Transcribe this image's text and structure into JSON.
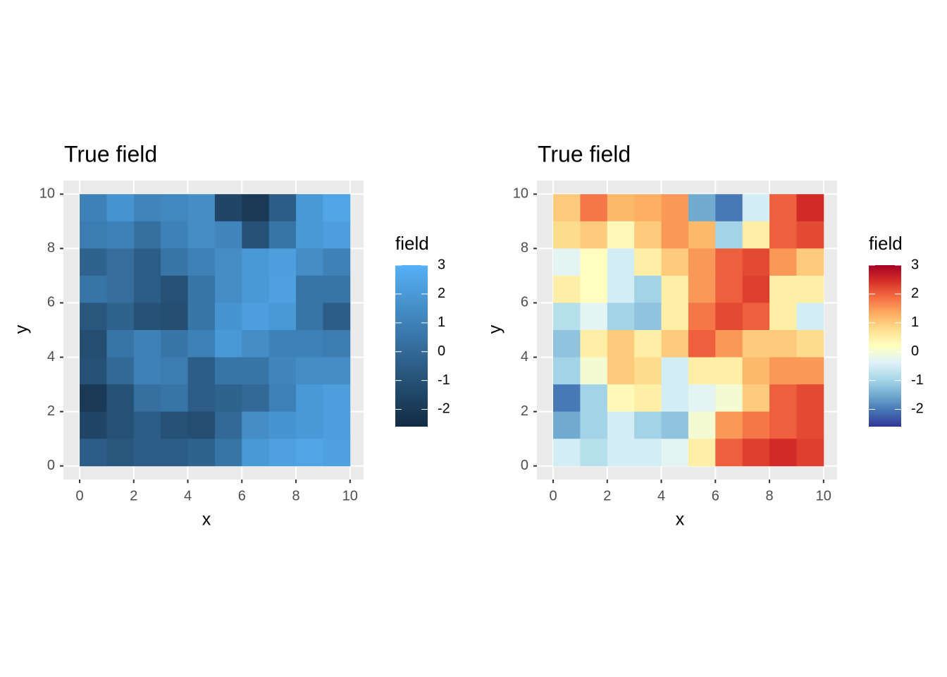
{
  "chart_data": [
    {
      "type": "heatmap",
      "title": "True field",
      "x_label": "x",
      "y_label": "y",
      "legend_title": "field",
      "x": [
        0.5,
        1.5,
        2.5,
        3.5,
        4.5,
        5.5,
        6.5,
        7.5,
        8.5,
        9.5
      ],
      "y": [
        9.5,
        8.5,
        7.5,
        6.5,
        5.5,
        4.5,
        3.5,
        2.5,
        1.5,
        0.5
      ],
      "z": [
        [
          1.0,
          1.8,
          1.2,
          1.3,
          1.5,
          -1.5,
          -2.0,
          -0.5,
          2.0,
          2.5
        ],
        [
          0.8,
          1.0,
          0.3,
          1.0,
          1.5,
          1.2,
          -1.0,
          0.5,
          2.0,
          2.2
        ],
        [
          -0.3,
          0.2,
          -0.5,
          0.5,
          1.0,
          1.5,
          2.0,
          2.2,
          1.5,
          1.0
        ],
        [
          0.5,
          0.2,
          -0.5,
          -1.0,
          0.5,
          1.5,
          2.0,
          2.3,
          0.5,
          0.5
        ],
        [
          -0.8,
          -0.3,
          -1.0,
          -1.2,
          0.5,
          1.8,
          2.2,
          2.0,
          0.5,
          -0.5
        ],
        [
          -1.2,
          0.5,
          1.0,
          0.5,
          1.0,
          2.0,
          1.5,
          1.0,
          1.0,
          0.8
        ],
        [
          -1.0,
          0.0,
          1.0,
          0.8,
          -0.5,
          0.5,
          0.5,
          1.2,
          1.5,
          1.5
        ],
        [
          -2.0,
          -1.0,
          0.3,
          0.5,
          -0.5,
          -0.3,
          0.0,
          1.0,
          2.0,
          2.2
        ],
        [
          -1.5,
          -1.0,
          -0.5,
          -1.0,
          -1.2,
          0.0,
          1.5,
          1.8,
          2.0,
          2.2
        ],
        [
          -0.5,
          -0.8,
          -0.5,
          -0.5,
          -0.3,
          0.5,
          2.0,
          2.3,
          2.5,
          2.3
        ]
      ],
      "xlim": [
        -0.6,
        10.5
      ],
      "ylim": [
        -0.5,
        10.5
      ],
      "xticks": [
        0,
        2,
        4,
        6,
        8,
        10
      ],
      "yticks": [
        0,
        2,
        4,
        6,
        8,
        10
      ],
      "zlim": [
        -2.6,
        3.0
      ],
      "zticks": [
        -2,
        -1,
        0,
        1,
        2,
        3
      ],
      "colors": [
        "#132B43",
        "#56B1F7"
      ]
    },
    {
      "type": "heatmap",
      "title": "True field",
      "x_label": "x",
      "y_label": "y",
      "legend_title": "field",
      "x": [
        0.5,
        1.5,
        2.5,
        3.5,
        4.5,
        5.5,
        6.5,
        7.5,
        8.5,
        9.5
      ],
      "y": [
        9.5,
        8.5,
        7.5,
        6.5,
        5.5,
        4.5,
        3.5,
        2.5,
        1.5,
        0.5
      ],
      "z": [
        [
          1.0,
          1.8,
          1.2,
          1.3,
          1.5,
          -1.5,
          -2.0,
          -0.5,
          2.0,
          2.5
        ],
        [
          0.8,
          1.0,
          0.3,
          1.0,
          1.5,
          1.2,
          -1.0,
          0.5,
          2.0,
          2.2
        ],
        [
          -0.3,
          0.2,
          -0.5,
          0.5,
          1.0,
          1.5,
          2.0,
          2.2,
          1.5,
          1.0
        ],
        [
          0.5,
          0.2,
          -0.5,
          -1.0,
          0.5,
          1.5,
          2.0,
          2.3,
          0.5,
          0.5
        ],
        [
          -0.8,
          -0.3,
          -1.0,
          -1.2,
          0.5,
          1.8,
          2.2,
          2.0,
          0.5,
          -0.5
        ],
        [
          -1.2,
          0.5,
          1.0,
          0.5,
          1.0,
          2.0,
          1.5,
          1.0,
          1.0,
          0.8
        ],
        [
          -1.0,
          0.0,
          1.0,
          0.8,
          -0.5,
          0.5,
          0.5,
          1.2,
          1.5,
          1.5
        ],
        [
          -2.0,
          -1.0,
          0.3,
          0.5,
          -0.5,
          -0.3,
          0.0,
          1.0,
          2.0,
          2.2
        ],
        [
          -1.5,
          -1.0,
          -0.5,
          -1.0,
          -1.2,
          0.0,
          1.5,
          1.8,
          2.0,
          2.2
        ],
        [
          -0.5,
          -0.8,
          -0.5,
          -0.5,
          -0.3,
          0.5,
          2.0,
          2.3,
          2.5,
          2.3
        ]
      ],
      "xlim": [
        -0.6,
        10.5
      ],
      "ylim": [
        -0.5,
        10.5
      ],
      "xticks": [
        0,
        2,
        4,
        6,
        8,
        10
      ],
      "yticks": [
        0,
        2,
        4,
        6,
        8,
        10
      ],
      "zlim": [
        -2.6,
        3.0
      ],
      "zticks": [
        -2,
        -1,
        0,
        1,
        2,
        3
      ],
      "colors": [
        "#313695",
        "#4575b4",
        "#74add1",
        "#abd9e9",
        "#e0f3f8",
        "#ffffbf",
        "#fee090",
        "#fdae61",
        "#f46d43",
        "#d73027",
        "#a50026"
      ]
    }
  ]
}
